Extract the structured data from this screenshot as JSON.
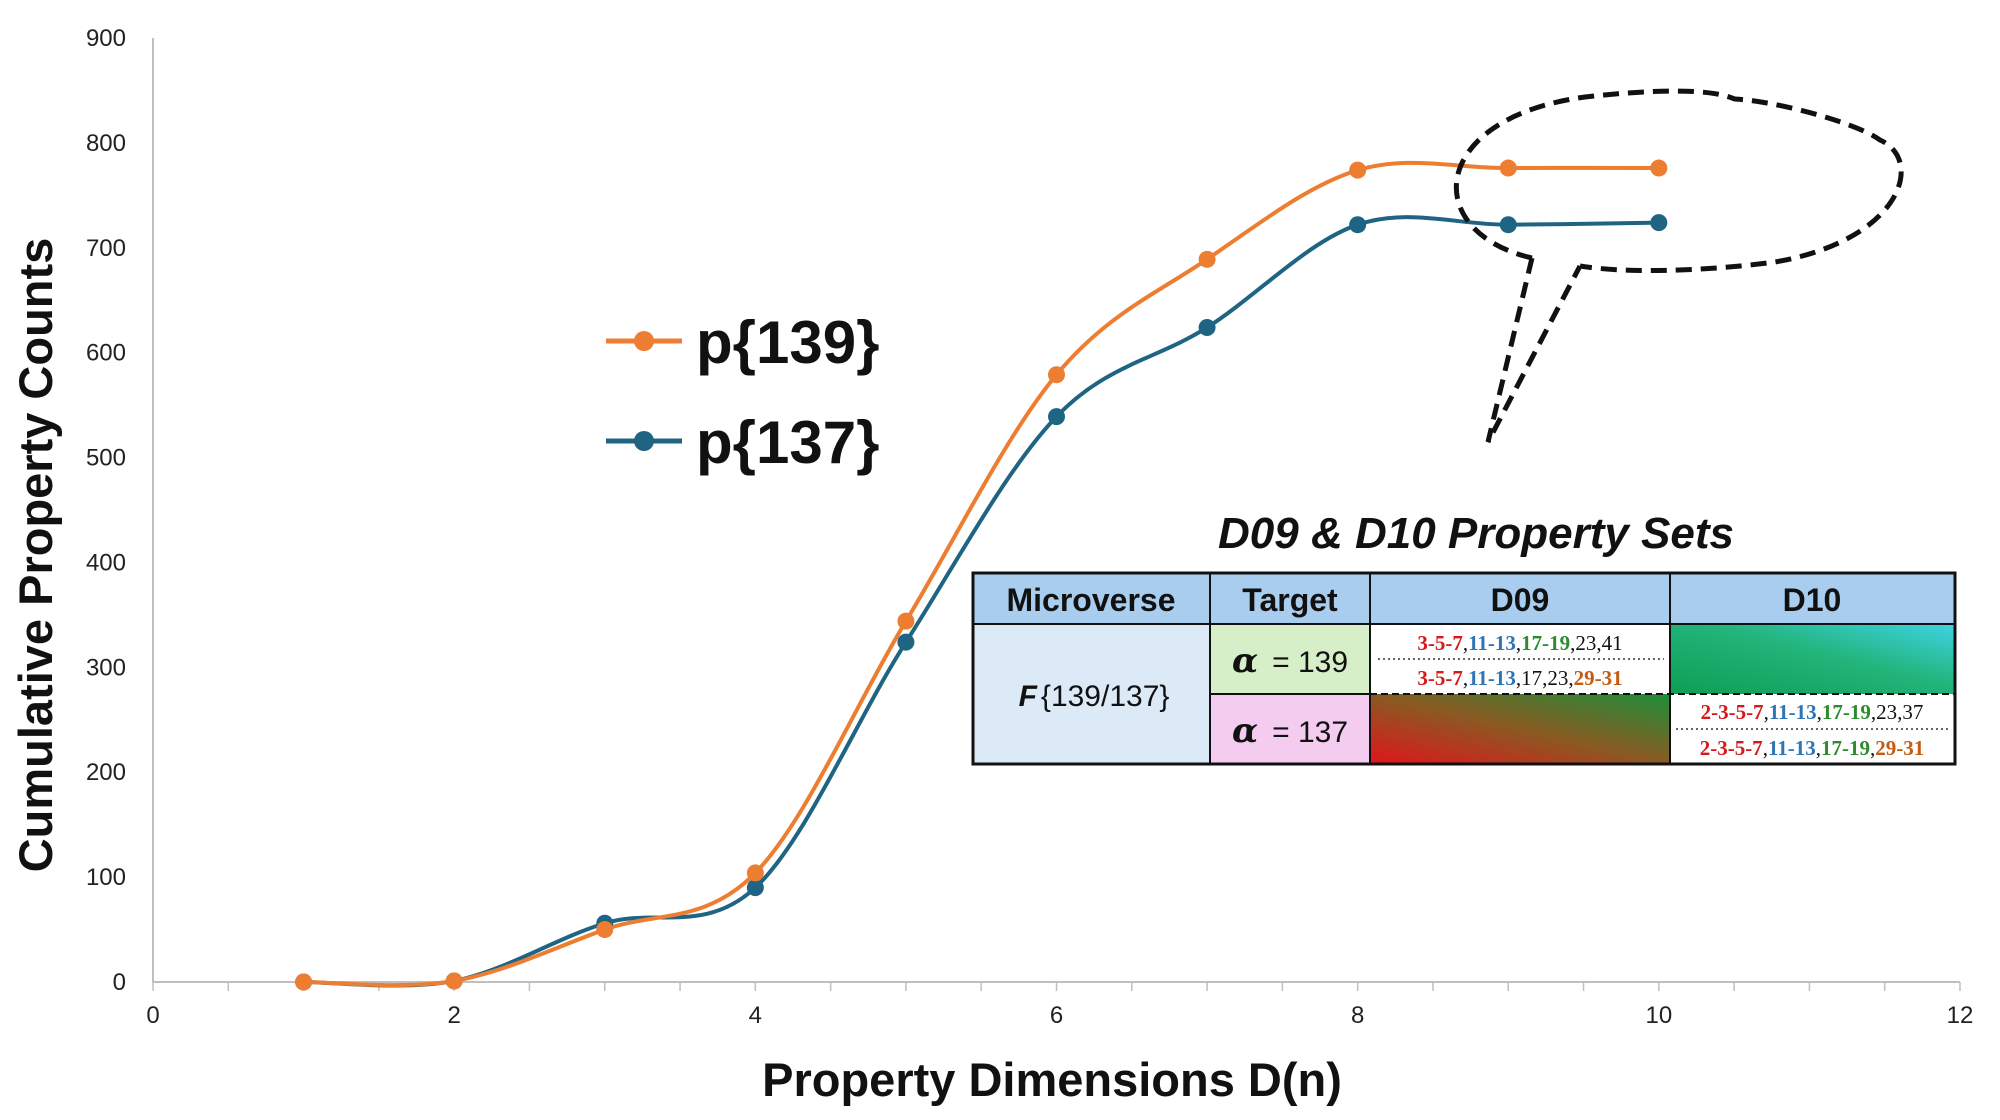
{
  "chart_data": {
    "type": "line",
    "title": "",
    "xlabel": "Property Dimensions D(n)",
    "ylabel": "Cumulative Property Counts",
    "xlim": [
      0,
      12
    ],
    "ylim": [
      0,
      900
    ],
    "xticks": [
      "0",
      "2",
      "4",
      "6",
      "8",
      "10",
      "12"
    ],
    "yticks": [
      "0",
      "100",
      "200",
      "300",
      "400",
      "500",
      "600",
      "700",
      "800",
      "900"
    ],
    "grid": false,
    "smooth": true,
    "legend_position": "upper-left-center",
    "series": [
      {
        "name": "p{139}",
        "color": "#ED7D31",
        "x": [
          1,
          2,
          3,
          4,
          5,
          6,
          7,
          8,
          9,
          10
        ],
        "y": [
          0,
          1,
          50,
          104,
          344,
          579,
          689,
          774,
          776,
          776
        ]
      },
      {
        "name": "p{137}",
        "color": "#1F6482",
        "x": [
          1,
          2,
          3,
          4,
          5,
          6,
          7,
          8,
          9,
          10
        ],
        "y": [
          0,
          1,
          56,
          90,
          324,
          539,
          624,
          722,
          722,
          724
        ]
      }
    ],
    "callout": "dashed ellipse around D09 and D10 points"
  },
  "table": {
    "title": "D09 & D10 Property Sets",
    "headers": [
      "Microverse",
      "Target",
      "D09",
      "D10"
    ],
    "microverse": "F",
    "microverse_rest": "{139/137}",
    "alpha_symbol": "α",
    "rows": [
      {
        "alpha_value": "= 139",
        "d09": [
          [
            [
              "3-5-7",
              "#D7191C"
            ],
            [
              ",",
              "#111111"
            ],
            [
              "11-13",
              "#2E75B6"
            ],
            [
              ",",
              "#111111"
            ],
            [
              "17-19",
              "#2E8B2E"
            ],
            [
              ",23,41",
              "#111111"
            ]
          ],
          [
            [
              "3-5-7",
              "#D7191C"
            ],
            [
              ",",
              "#111111"
            ],
            [
              "11-13",
              "#2E75B6"
            ],
            [
              ",17,23,",
              "#111111"
            ],
            [
              "29-31",
              "#C55A11"
            ]
          ]
        ],
        "d10": []
      },
      {
        "alpha_value": "= 137",
        "d09": [],
        "d10": [
          [
            [
              "2-3-5-7",
              "#D7191C"
            ],
            [
              ",",
              "#111111"
            ],
            [
              "11-13",
              "#2E75B6"
            ],
            [
              ",",
              "#111111"
            ],
            [
              "17-19",
              "#2E8B2E"
            ],
            [
              ",23,37",
              "#111111"
            ]
          ],
          [
            [
              "2-3-5-7",
              "#D7191C"
            ],
            [
              ",",
              "#111111"
            ],
            [
              "11-13",
              "#2E75B6"
            ],
            [
              ",",
              "#111111"
            ],
            [
              "17-19",
              "#2E8B2E"
            ],
            [
              ",",
              "#111111"
            ],
            [
              "29-31",
              "#C55A11"
            ]
          ]
        ]
      }
    ],
    "colors": {
      "header_bg": "#A9CDEE",
      "microverse_bg": "#DCE9F7",
      "alpha139_bg": "#D6EFC9",
      "alpha137_bg": "#F3CCEF"
    }
  }
}
